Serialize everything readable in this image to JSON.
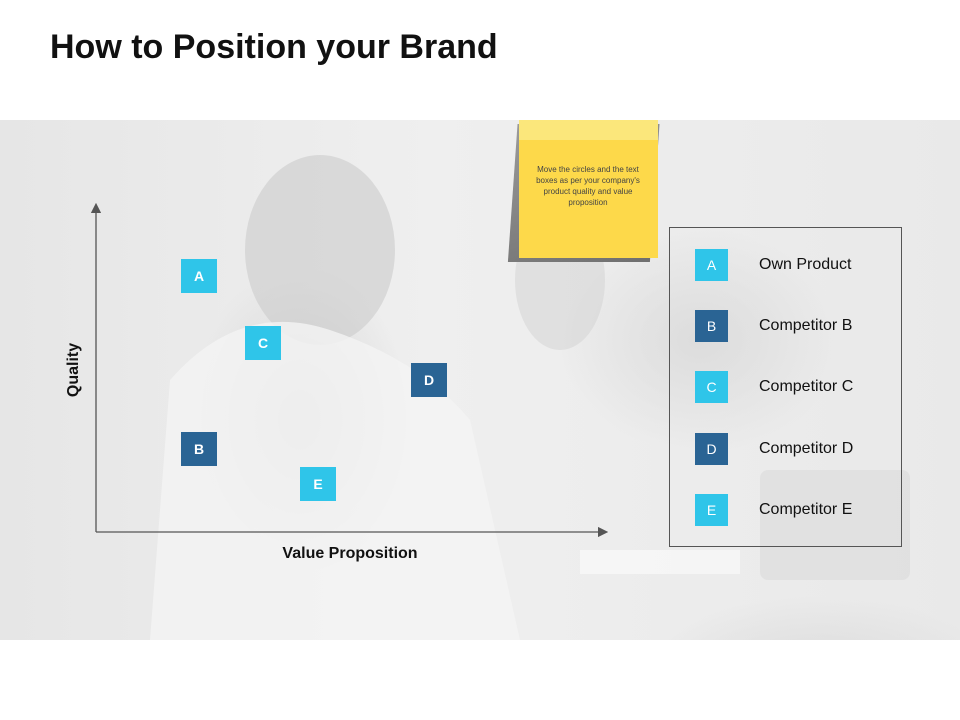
{
  "title": "How to Position your Brand",
  "note": "Move the circles and the text boxes as per your company's product quality and value proposition",
  "axes": {
    "y_label": "Quality",
    "x_label": "Value Proposition"
  },
  "colors": {
    "light_blue": "#2fc5e9",
    "dark_blue": "#2a6494",
    "note_yellow": "#fdd94a"
  },
  "chart_data": {
    "type": "scatter",
    "xlabel": "Value Proposition",
    "ylabel": "Quality",
    "points": [
      {
        "label": "A",
        "name": "Own Product",
        "color": "#2fc5e9"
      },
      {
        "label": "B",
        "name": "Competitor B",
        "color": "#2a6494"
      },
      {
        "label": "C",
        "name": "Competitor C",
        "color": "#2fc5e9"
      },
      {
        "label": "D",
        "name": "Competitor D",
        "color": "#2a6494"
      },
      {
        "label": "E",
        "name": "Competitor E",
        "color": "#2fc5e9"
      }
    ]
  },
  "legend": [
    {
      "key": "A",
      "label": "Own Product",
      "color": "#2fc5e9"
    },
    {
      "key": "B",
      "label": "Competitor B",
      "color": "#2a6494"
    },
    {
      "key": "C",
      "label": "Competitor C",
      "color": "#2fc5e9"
    },
    {
      "key": "D",
      "label": "Competitor D",
      "color": "#2a6494"
    },
    {
      "key": "E",
      "label": "Competitor E",
      "color": "#2fc5e9"
    }
  ]
}
